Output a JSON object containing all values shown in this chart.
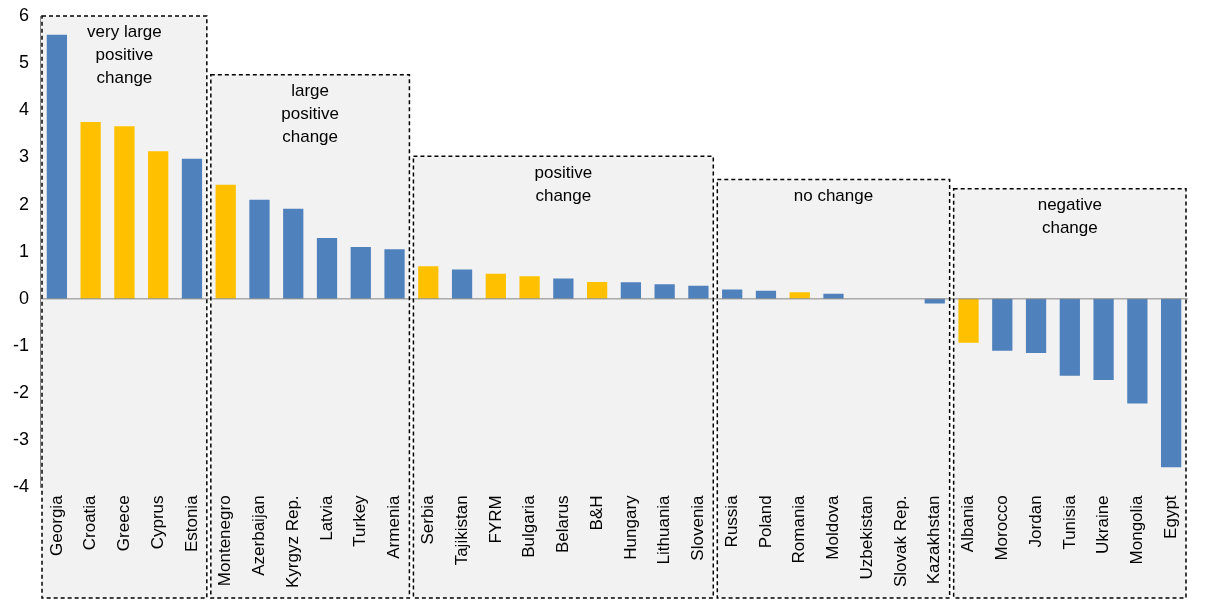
{
  "chart_data": {
    "type": "bar",
    "categories": [
      "Georgia",
      "Croatia",
      "Greece",
      "Cyprus",
      "Estonia",
      "Montenegro",
      "Azerbaijan",
      "Kyrgyz Rep.",
      "Latvia",
      "Turkey",
      "Armenia",
      "Serbia",
      "Tajikistan",
      "FYRM",
      "Bulgaria",
      "Belarus",
      "B&H",
      "Hungary",
      "Lithuania",
      "Slovenia",
      "Russia",
      "Poland",
      "Romania",
      "Moldova",
      "Uzbekistan",
      "Slovak Rep.",
      "Kazakhstan",
      "Albania",
      "Morocco",
      "Jordan",
      "Tunisia",
      "Ukraine",
      "Mongolia",
      "Egypt"
    ],
    "values": [
      5.6,
      3.75,
      3.66,
      3.13,
      2.97,
      2.42,
      2.1,
      1.91,
      1.29,
      1.1,
      1.05,
      0.69,
      0.62,
      0.53,
      0.48,
      0.43,
      0.36,
      0.35,
      0.31,
      0.28,
      0.2,
      0.17,
      0.14,
      0.11,
      0,
      0,
      -0.1,
      -0.93,
      -1.1,
      -1.15,
      -1.63,
      -1.72,
      -2.22,
      -3.57
    ],
    "colors": [
      "#4f81bd",
      "#ffc000",
      "#ffc000",
      "#ffc000",
      "#4f81bd",
      "#ffc000",
      "#4f81bd",
      "#4f81bd",
      "#4f81bd",
      "#4f81bd",
      "#4f81bd",
      "#ffc000",
      "#4f81bd",
      "#ffc000",
      "#ffc000",
      "#4f81bd",
      "#ffc000",
      "#4f81bd",
      "#4f81bd",
      "#4f81bd",
      "#4f81bd",
      "#4f81bd",
      "#ffc000",
      "#4f81bd",
      "#4f81bd",
      "#4f81bd",
      "#4f81bd",
      "#ffc000",
      "#4f81bd",
      "#4f81bd",
      "#4f81bd",
      "#4f81bd",
      "#4f81bd",
      "#4f81bd"
    ],
    "ref_lines": [
      {
        "axis": "y",
        "value": 0,
        "color": "#868686"
      }
    ],
    "ylim": [
      -4,
      6
    ],
    "yticks": [
      -4,
      -3,
      -2,
      -1,
      0,
      1,
      2,
      3,
      4,
      5,
      6
    ],
    "grid": false,
    "legend": false,
    "bands": [
      {
        "axis": "x",
        "from": "Georgia",
        "to": "Estonia",
        "label": "very large positive change",
        "color": "#f2f2f2"
      },
      {
        "axis": "x",
        "from": "Montenegro",
        "to": "Armenia",
        "label": "large positive change",
        "color": "#f2f2f2"
      },
      {
        "axis": "x",
        "from": "Serbia",
        "to": "Slovenia",
        "label": "positive change",
        "color": "#f2f2f2"
      },
      {
        "axis": "x",
        "from": "Russia",
        "to": "Kazakhstan",
        "label": "no change",
        "color": "#f2f2f2"
      },
      {
        "axis": "x",
        "from": "Albania",
        "to": "Egypt",
        "label": "negative change",
        "color": "#f2f2f2"
      }
    ]
  }
}
